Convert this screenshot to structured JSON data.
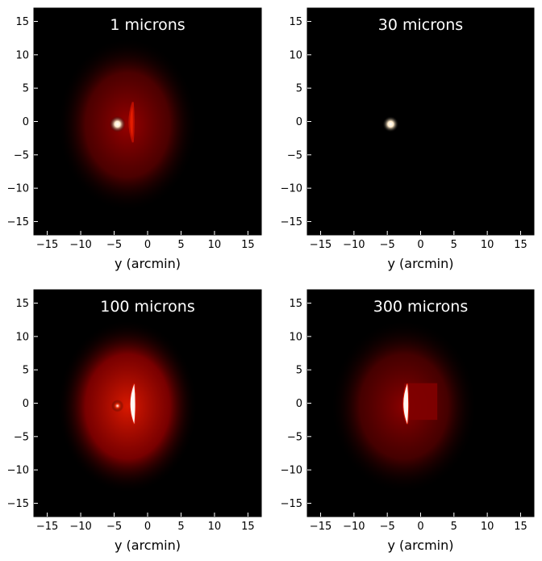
{
  "chart_data": [
    {
      "type": "heatmap",
      "title": "1 microns",
      "xlabel": "y (arcmin)",
      "ylabel": "",
      "xlim": [
        -17,
        17
      ],
      "ylim": [
        -17,
        17
      ],
      "xticks": [
        -15,
        -10,
        -5,
        0,
        5,
        10,
        15
      ],
      "yticks": [
        15,
        10,
        5,
        0,
        -5,
        -10,
        -15
      ],
      "grid": false,
      "colormap": "black-red-yellow-white",
      "features": [
        {
          "kind": "diffuse-halo",
          "x_range": [
            -13,
            7
          ],
          "y_range": [
            -15,
            14
          ],
          "intensity": 0.22
        },
        {
          "kind": "point-source",
          "x": -4.5,
          "y": -0.4,
          "intensity": 1.0
        },
        {
          "kind": "arc",
          "x": -2.2,
          "y": -0.1,
          "half_length": 3.0,
          "intensity": 0.85
        }
      ]
    },
    {
      "type": "heatmap",
      "title": "30 microns",
      "xlabel": "y (arcmin)",
      "ylabel": "",
      "xlim": [
        -17,
        17
      ],
      "ylim": [
        -17,
        17
      ],
      "xticks": [
        -15,
        -10,
        -5,
        0,
        5,
        10,
        15
      ],
      "yticks": [
        15,
        10,
        5,
        0,
        -5,
        -10,
        -15
      ],
      "grid": false,
      "colormap": "black-red-yellow-white",
      "features": [
        {
          "kind": "point-source",
          "x": -4.5,
          "y": -0.4,
          "intensity": 1.0
        }
      ]
    },
    {
      "type": "heatmap",
      "title": "100 microns",
      "xlabel": "y (arcmin)",
      "ylabel": "",
      "xlim": [
        -17,
        17
      ],
      "ylim": [
        -17,
        17
      ],
      "xticks": [
        -15,
        -10,
        -5,
        0,
        5,
        10,
        15
      ],
      "yticks": [
        15,
        10,
        5,
        0,
        -5,
        -10,
        -15
      ],
      "grid": false,
      "colormap": "black-red-yellow-white",
      "features": [
        {
          "kind": "diffuse-halo",
          "x_range": [
            -13,
            7
          ],
          "y_range": [
            -15,
            14
          ],
          "intensity": 0.35
        },
        {
          "kind": "point-source",
          "x": -4.5,
          "y": -0.4,
          "intensity": 0.6
        },
        {
          "kind": "arc",
          "x": -2.0,
          "y": -0.1,
          "half_length": 3.0,
          "intensity": 1.0
        }
      ]
    },
    {
      "type": "heatmap",
      "title": "300 microns",
      "xlabel": "y (arcmin)",
      "ylabel": "",
      "xlim": [
        -17,
        17
      ],
      "ylim": [
        -17,
        17
      ],
      "xticks": [
        -15,
        -10,
        -5,
        0,
        5,
        10,
        15
      ],
      "yticks": [
        15,
        10,
        5,
        0,
        -5,
        -10,
        -15
      ],
      "grid": false,
      "colormap": "black-red-yellow-white",
      "features": [
        {
          "kind": "diffuse-halo",
          "x_range": [
            -13,
            8
          ],
          "y_range": [
            -15,
            14
          ],
          "intensity": 0.2
        },
        {
          "kind": "box-glow",
          "x_range": [
            -2.5,
            2.5
          ],
          "y_range": [
            -2.5,
            3
          ],
          "intensity": 0.3
        },
        {
          "kind": "arc",
          "x": -2.0,
          "y": -0.1,
          "half_length": 3.0,
          "intensity": 1.0
        }
      ]
    }
  ]
}
